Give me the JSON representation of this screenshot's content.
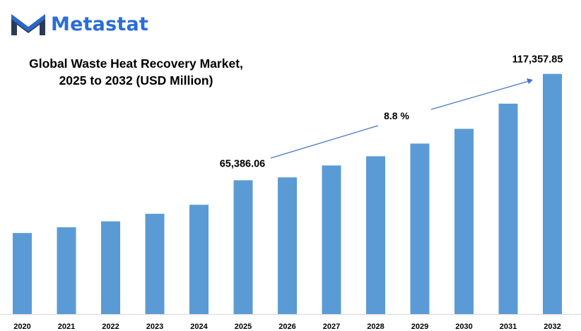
{
  "brand": {
    "name": "Metastat",
    "logo_icon": "metastat-m-logo",
    "colors": {
      "dark": "#2b3a55",
      "blue": "#2a6ed6"
    }
  },
  "chart_data": {
    "type": "bar",
    "title": "Global Waste Heat Recovery Market, 2025 to 2032 (USD Million)",
    "title_lines": [
      "Global Waste Heat Recovery Market,",
      "2025 to 2032 (USD Million)"
    ],
    "categories": [
      "2020",
      "2021",
      "2022",
      "2023",
      "2024",
      "2025",
      "2026",
      "2027",
      "2028",
      "2029",
      "2030",
      "2031",
      "2032"
    ],
    "series": [
      {
        "values": [
          39600,
          42400,
          45300,
          49000,
          53400,
          65386.06,
          66800,
          72600,
          77100,
          83300,
          90500,
          102800,
          117357.85
        ]
      }
    ],
    "bar_color": "#5b9bd5",
    "ylim": [
      0,
      130000
    ],
    "grid": false,
    "annotations": {
      "start_label": "65,386.06",
      "end_label": "117,357.85",
      "cagr_label": "8.8 %"
    }
  }
}
